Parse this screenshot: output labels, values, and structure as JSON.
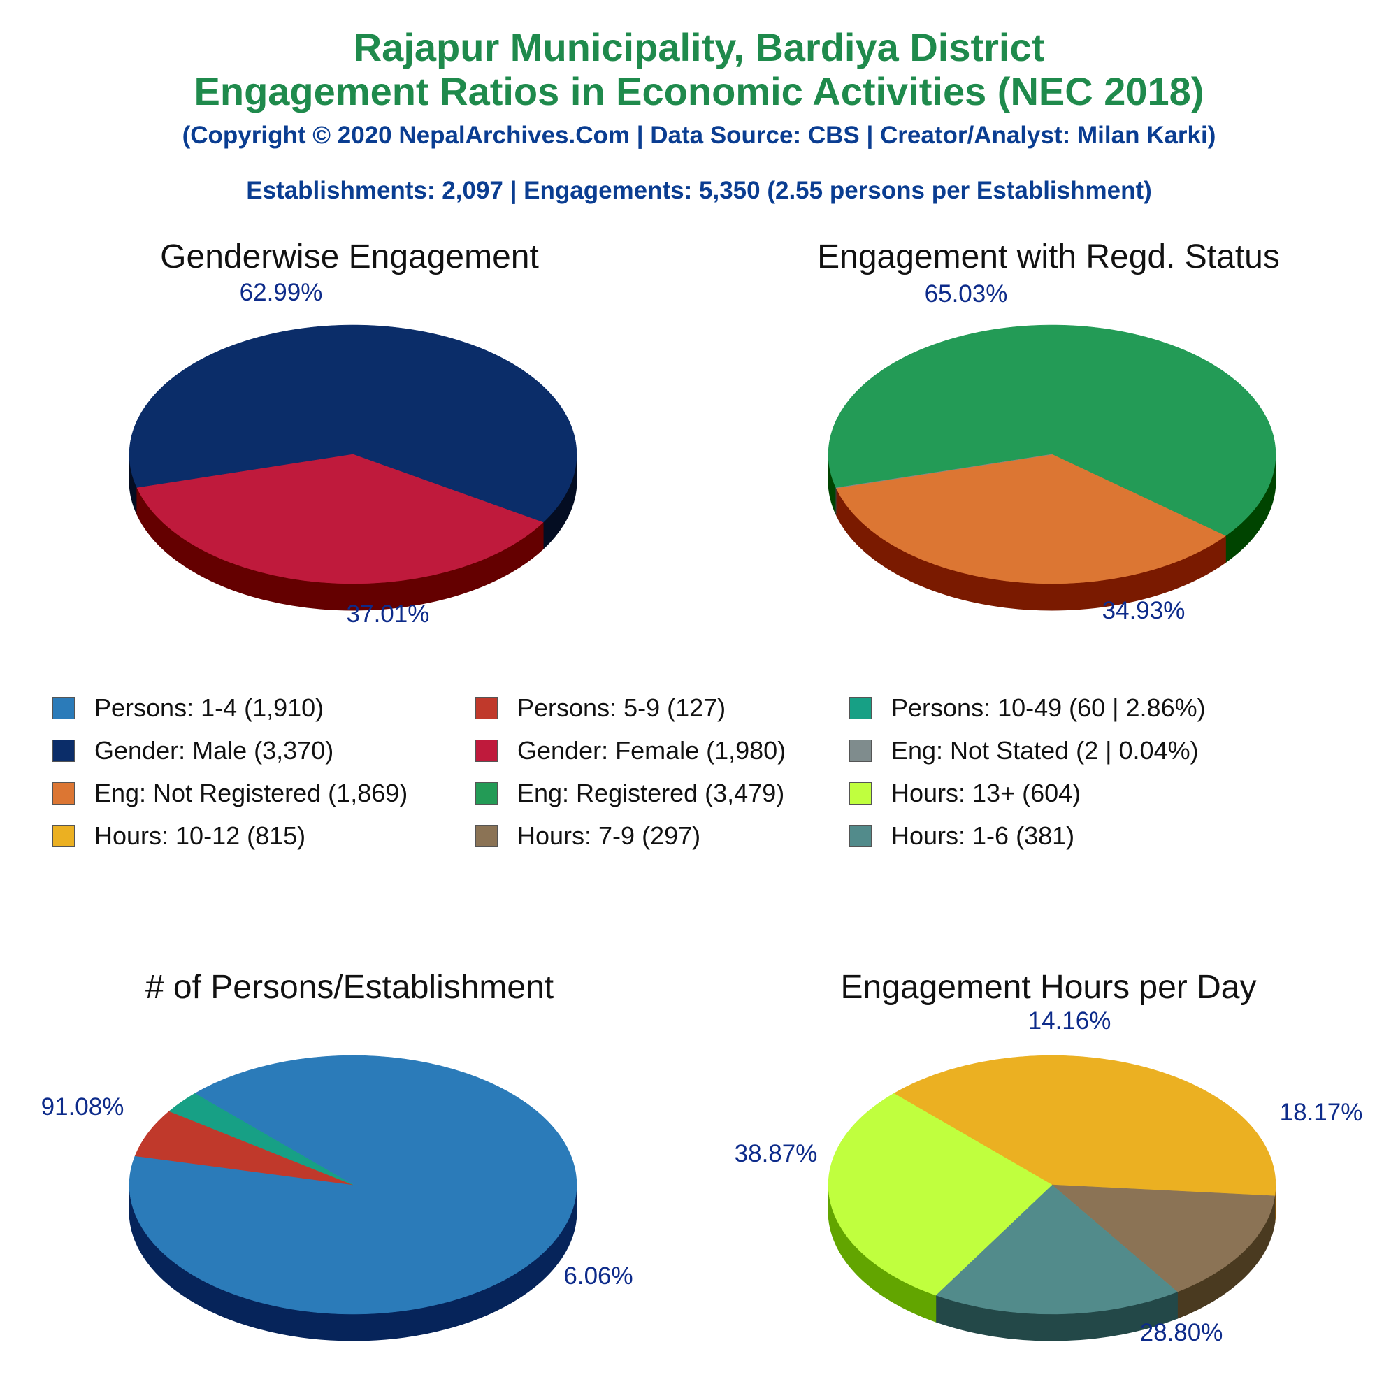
{
  "header": {
    "title_line1": "Rajapur Municipality, Bardiya District",
    "title_line2": "Engagement Ratios in Economic Activities (NEC 2018)",
    "copyright": "(Copyright © 2020 NepalArchives.Com | Data Source: CBS | Creator/Analyst: Milan Karki)",
    "summary": "Establishments: 2,097 | Engagements: 5,350 (2.55 persons per Establishment)"
  },
  "legend": {
    "items": [
      {
        "label": "Persons: 1-4 (1,910)",
        "color": "#2b7bb9"
      },
      {
        "label": "Persons: 5-9 (127)",
        "color": "#c0392b"
      },
      {
        "label": "Persons: 10-49 (60 | 2.86%)",
        "color": "#17a085"
      },
      {
        "label": "Gender: Male (3,370)",
        "color": "#0b2d69"
      },
      {
        "label": "Gender: Female (1,980)",
        "color": "#bf1a3c"
      },
      {
        "label": "Eng: Not Stated (2 | 0.04%)",
        "color": "#7f8c8d"
      },
      {
        "label": "Eng: Not Registered (1,869)",
        "color": "#dc7633"
      },
      {
        "label": "Eng: Registered (3,479)",
        "color": "#239b56"
      },
      {
        "label": "Hours: 13+ (604)",
        "color": "#c0ff3e"
      },
      {
        "label": "Hours: 10-12 (815)",
        "color": "#ebb022"
      },
      {
        "label": "Hours: 7-9 (297)",
        "color": "#8b7355"
      },
      {
        "label": "Hours: 1-6 (381)",
        "color": "#528b8b"
      }
    ]
  },
  "chart_data": [
    {
      "type": "pie",
      "title": "Genderwise Engagement",
      "slices": [
        {
          "category": "Gender: Male",
          "value": 3370,
          "percent_label": "62.99%",
          "color": "#0b2d69",
          "side_color": "#040d22"
        },
        {
          "category": "Gender: Female",
          "value": 1980,
          "percent_label": "37.01%",
          "color": "#bf1a3c",
          "side_color": "#640000"
        }
      ]
    },
    {
      "type": "pie",
      "title": "Engagement with Regd. Status",
      "slices": [
        {
          "category": "Eng: Registered",
          "value": 3479,
          "percent_label": "65.03%",
          "color": "#239b56",
          "side_color": "#004400"
        },
        {
          "category": "Eng: Not Registered",
          "value": 1869,
          "percent_label": "34.93%",
          "color": "#dc7633",
          "side_color": "#7a1a00"
        },
        {
          "category": "Eng: Not Stated",
          "value": 2,
          "percent_label": "",
          "color": "#7f8c8d",
          "side_color": "#3a4040"
        }
      ]
    },
    {
      "type": "pie",
      "title": "# of Persons/Establishment",
      "slices": [
        {
          "category": "Persons: 1-4",
          "value": 1910,
          "percent_label": "91.08%",
          "color": "#2b7bb9",
          "side_color": "#06245a"
        },
        {
          "category": "Persons: 5-9",
          "value": 127,
          "percent_label": "6.06%",
          "color": "#c0392b",
          "side_color": "#6e0000"
        },
        {
          "category": "Persons: 10-49",
          "value": 60,
          "percent_label": "",
          "color": "#17a085",
          "side_color": "#004035"
        }
      ]
    },
    {
      "type": "pie",
      "title": "Engagement Hours per Day",
      "slices": [
        {
          "category": "Hours: 10-12",
          "value": 815,
          "percent_label": "38.87%",
          "color": "#ebb022",
          "side_color": "#955a00"
        },
        {
          "category": "Hours: 7-9",
          "value": 297,
          "percent_label": "14.16%",
          "color": "#8b7355",
          "side_color": "#4a3a20"
        },
        {
          "category": "Hours: 1-6",
          "value": 381,
          "percent_label": "18.17%",
          "color": "#528b8b",
          "side_color": "#234848"
        },
        {
          "category": "Hours: 13+",
          "value": 604,
          "percent_label": "28.80%",
          "color": "#c0ff3e",
          "side_color": "#62a500"
        }
      ]
    }
  ]
}
